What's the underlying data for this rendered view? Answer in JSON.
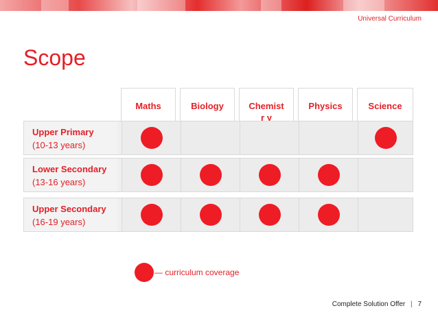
{
  "brand": "Universal Curriculum",
  "title": "Scope",
  "columns": [
    "Maths",
    "Biology",
    "Chemistr y",
    "Physics",
    "Science"
  ],
  "rows": [
    {
      "level": "Upper Primary",
      "age": "(10-13 years)",
      "coverage": [
        true,
        false,
        false,
        false,
        true
      ]
    },
    {
      "level": "Lower Secondary",
      "age": "(13-16 years)",
      "coverage": [
        true,
        true,
        true,
        true,
        false
      ]
    },
    {
      "level": "Upper Secondary",
      "age": "(16-19 years)",
      "coverage": [
        true,
        true,
        true,
        true,
        false
      ]
    }
  ],
  "legend": {
    "icon": "red-dot",
    "text": "— curriculum coverage"
  },
  "footer": {
    "label": "Complete Solution Offer",
    "separator": "|",
    "page": "7"
  },
  "colors": {
    "accent": "#e31f26",
    "dot": "#ee1c25",
    "cell": "#ececec",
    "border": "#d9d9d9"
  }
}
